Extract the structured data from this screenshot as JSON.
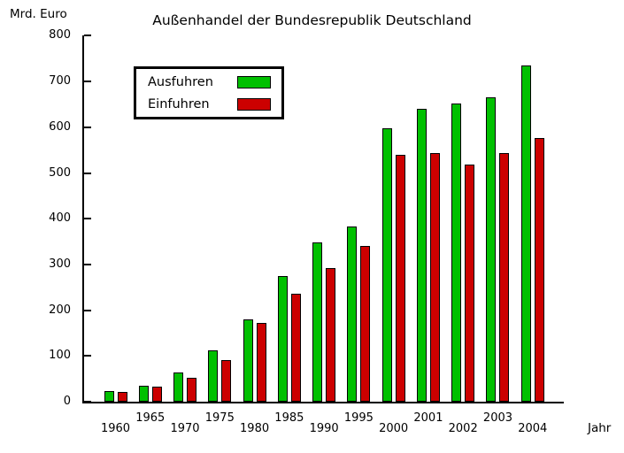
{
  "y_axis": {
    "unit_label": "Mrd. Euro",
    "ticks": [
      0,
      100,
      200,
      300,
      400,
      500,
      600,
      700,
      800
    ]
  },
  "x_axis": {
    "label": "Jahr"
  },
  "legend": {
    "entries": [
      {
        "label": "Ausfuhren",
        "color": "#00c000"
      },
      {
        "label": "Einfuhren",
        "color": "#cc0000"
      }
    ]
  },
  "chart_data": {
    "type": "bar",
    "title": "Außenhandel der Bundesrepublik Deutschland",
    "xlabel": "Jahr",
    "ylabel": "Mrd. Euro",
    "ylim": [
      0,
      800
    ],
    "ytick_step": 100,
    "grid": false,
    "legend_position": "upper-left-inside",
    "categories": [
      "1960",
      "1965",
      "1970",
      "1975",
      "1980",
      "1985",
      "1990",
      "1995",
      "2000",
      "2001",
      "2002",
      "2003",
      "2004"
    ],
    "series": [
      {
        "name": "Ausfuhren",
        "color": "#00c000",
        "values": [
          24,
          35,
          64,
          113,
          179,
          275,
          348,
          383,
          598,
          640,
          652,
          665,
          735
        ]
      },
      {
        "name": "Einfuhren",
        "color": "#cc0000",
        "values": [
          21,
          33,
          53,
          90,
          173,
          236,
          293,
          340,
          540,
          543,
          519,
          543,
          577
        ]
      }
    ]
  }
}
